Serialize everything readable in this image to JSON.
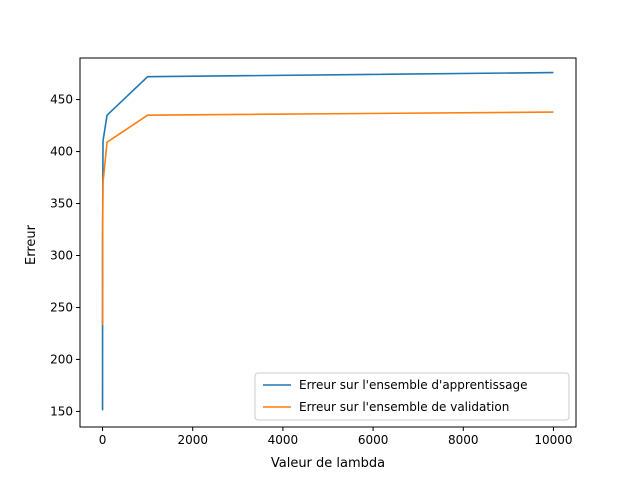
{
  "chart_data": {
    "type": "line",
    "title": "",
    "xlabel": "Valeur de lambda",
    "ylabel": "Erreur",
    "xlim": [
      -500,
      10500
    ],
    "ylim": [
      135,
      490
    ],
    "xticks": [
      0,
      2000,
      4000,
      6000,
      8000,
      10000
    ],
    "yticks": [
      150,
      200,
      250,
      300,
      350,
      400,
      450
    ],
    "grid": false,
    "legend_position": "lower right",
    "series": [
      {
        "name": "Erreur sur l'ensemble d'apprentissage",
        "color": "#1f77b4",
        "x": [
          0,
          1,
          10,
          100,
          1000,
          10000
        ],
        "y": [
          151,
          310,
          410,
          435,
          472,
          476
        ]
      },
      {
        "name": "Erreur sur l'ensemble de validation",
        "color": "#ff7f0e",
        "x": [
          0,
          1,
          10,
          100,
          1000,
          10000
        ],
        "y": [
          233,
          315,
          370,
          409,
          435,
          438
        ]
      }
    ]
  }
}
